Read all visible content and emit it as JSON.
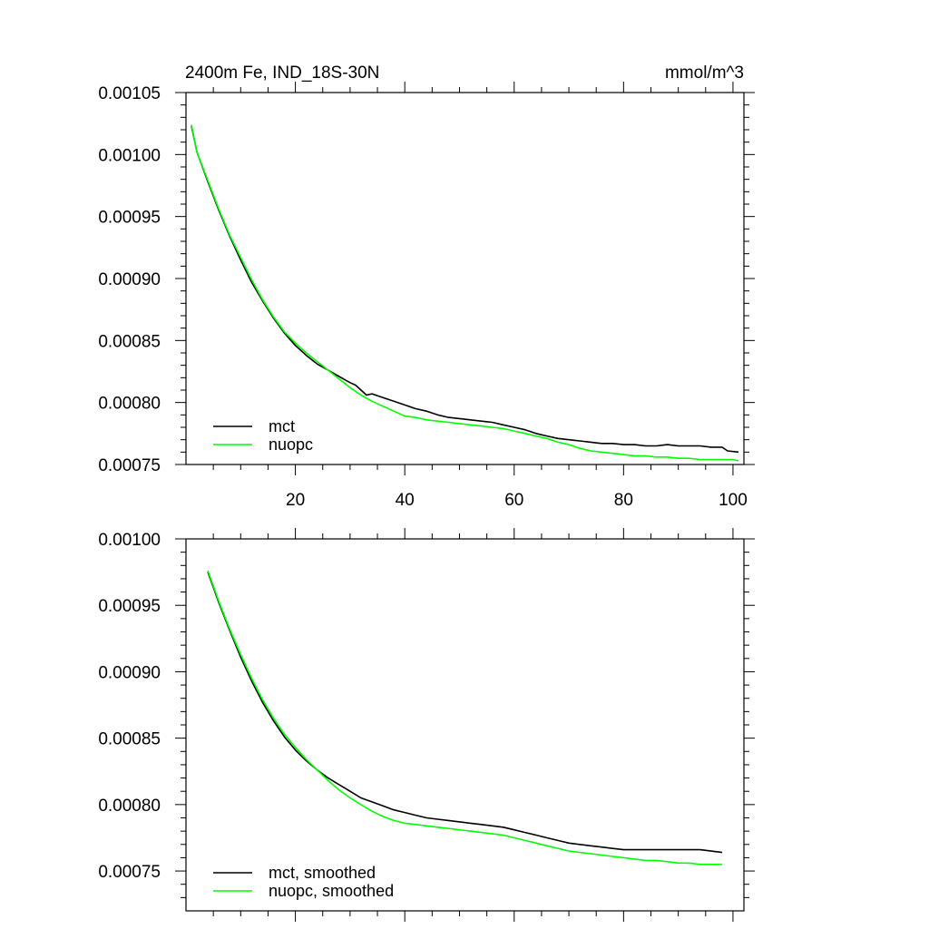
{
  "chart_data": [
    {
      "type": "line",
      "title_left": "2400m Fe, IND_18S-30N",
      "title_right": "mmol/m^3",
      "xlim": [
        0,
        102
      ],
      "ylim": [
        0.00075,
        0.00105
      ],
      "x_ticks": [
        20,
        40,
        60,
        80,
        100
      ],
      "x_tick_labels": [
        "20",
        "40",
        "60",
        "80",
        "100"
      ],
      "y_ticks": [
        0.00075,
        0.0008,
        0.00085,
        0.0009,
        0.00095,
        0.001,
        0.00105
      ],
      "y_tick_labels": [
        "0.00075",
        "0.00080",
        "0.00085",
        "0.00090",
        "0.00095",
        "0.00100",
        "0.00105"
      ],
      "grid": false,
      "legend_position": "bottom-left",
      "series": [
        {
          "name": "mct",
          "color": "#000000",
          "x": [
            1,
            2,
            4,
            6,
            8,
            10,
            12,
            14,
            16,
            18,
            20,
            22,
            24,
            26,
            28,
            30,
            31,
            33,
            34,
            36,
            38,
            40,
            42,
            44,
            46,
            48,
            50,
            52,
            54,
            56,
            58,
            60,
            62,
            64,
            66,
            68,
            70,
            72,
            74,
            76,
            78,
            80,
            82,
            84,
            86,
            88,
            90,
            92,
            94,
            96,
            98,
            99,
            101
          ],
          "values": [
            0.001023,
            0.001002,
            0.000978,
            0.000955,
            0.000934,
            0.000915,
            0.000897,
            0.000882,
            0.000868,
            0.000856,
            0.000846,
            0.000838,
            0.000831,
            0.000826,
            0.000821,
            0.000816,
            0.000814,
            0.000806,
            0.000807,
            0.000804,
            0.000801,
            0.000798,
            0.000795,
            0.000793,
            0.00079,
            0.000788,
            0.000787,
            0.000786,
            0.000785,
            0.000784,
            0.000782,
            0.00078,
            0.000778,
            0.000775,
            0.000773,
            0.000771,
            0.00077,
            0.000769,
            0.000768,
            0.000767,
            0.000767,
            0.000766,
            0.000766,
            0.000765,
            0.000765,
            0.000766,
            0.000765,
            0.000765,
            0.000765,
            0.000764,
            0.000764,
            0.000761,
            0.00076
          ]
        },
        {
          "name": "nuopc",
          "color": "#00ff00",
          "x": [
            1,
            2,
            4,
            6,
            8,
            10,
            12,
            14,
            16,
            18,
            20,
            22,
            24,
            26,
            28,
            30,
            32,
            34,
            36,
            38,
            40,
            42,
            44,
            46,
            48,
            50,
            52,
            54,
            56,
            58,
            60,
            62,
            64,
            66,
            68,
            70,
            72,
            74,
            76,
            78,
            80,
            82,
            84,
            86,
            88,
            90,
            92,
            94,
            96,
            98,
            100,
            101
          ],
          "values": [
            0.001024,
            0.001002,
            0.000979,
            0.000956,
            0.000935,
            0.000917,
            0.000899,
            0.000883,
            0.000869,
            0.000857,
            0.000848,
            0.00084,
            0.000833,
            0.000826,
            0.000819,
            0.000812,
            0.000806,
            0.000801,
            0.000797,
            0.000793,
            0.000789,
            0.000788,
            0.000786,
            0.000785,
            0.000784,
            0.000783,
            0.000782,
            0.000781,
            0.00078,
            0.000779,
            0.000777,
            0.000775,
            0.000773,
            0.000771,
            0.000768,
            0.000766,
            0.000763,
            0.000761,
            0.00076,
            0.000759,
            0.000758,
            0.000757,
            0.000757,
            0.000756,
            0.000756,
            0.000755,
            0.000755,
            0.000754,
            0.000754,
            0.000754,
            0.000754,
            0.000753
          ]
        }
      ]
    },
    {
      "type": "line",
      "xlim": [
        0,
        102
      ],
      "ylim": [
        0.00072,
        0.001
      ],
      "x_ticks": [
        20,
        40,
        60,
        80,
        100
      ],
      "y_ticks": [
        0.00075,
        0.0008,
        0.00085,
        0.0009,
        0.00095,
        0.001
      ],
      "y_tick_labels": [
        "0.00075",
        "0.00080",
        "0.00085",
        "0.00090",
        "0.00095",
        "0.00100"
      ],
      "grid": false,
      "legend_position": "bottom-left",
      "series": [
        {
          "name": "mct, smoothed",
          "color": "#000000",
          "x": [
            4,
            6,
            8,
            10,
            12,
            14,
            16,
            18,
            20,
            22,
            24,
            26,
            28,
            30,
            32,
            34,
            36,
            38,
            40,
            42,
            44,
            46,
            48,
            50,
            52,
            54,
            56,
            58,
            60,
            62,
            64,
            66,
            68,
            70,
            72,
            74,
            76,
            78,
            80,
            82,
            84,
            86,
            88,
            90,
            92,
            94,
            96,
            98
          ],
          "values": [
            0.000975,
            0.000952,
            0.000931,
            0.000911,
            0.000893,
            0.000877,
            0.000863,
            0.000851,
            0.000841,
            0.000833,
            0.000826,
            0.00082,
            0.000815,
            0.00081,
            0.000805,
            0.000802,
            0.000799,
            0.000796,
            0.000794,
            0.000792,
            0.00079,
            0.000789,
            0.000788,
            0.000787,
            0.000786,
            0.000785,
            0.000784,
            0.000783,
            0.000781,
            0.000779,
            0.000777,
            0.000775,
            0.000773,
            0.000771,
            0.00077,
            0.000769,
            0.000768,
            0.000767,
            0.000766,
            0.000766,
            0.000766,
            0.000766,
            0.000766,
            0.000766,
            0.000766,
            0.000766,
            0.000765,
            0.000764
          ]
        },
        {
          "name": "nuopc, smoothed",
          "color": "#00ff00",
          "x": [
            4,
            6,
            8,
            10,
            12,
            14,
            16,
            18,
            20,
            22,
            24,
            26,
            28,
            30,
            32,
            34,
            36,
            38,
            40,
            42,
            44,
            46,
            48,
            50,
            52,
            54,
            56,
            58,
            60,
            62,
            64,
            66,
            68,
            70,
            72,
            74,
            76,
            78,
            80,
            82,
            84,
            86,
            88,
            90,
            92,
            94,
            96,
            98
          ],
          "values": [
            0.000976,
            0.000953,
            0.000932,
            0.000913,
            0.000895,
            0.000879,
            0.000865,
            0.000853,
            0.000843,
            0.000834,
            0.000826,
            0.000818,
            0.000811,
            0.000805,
            0.0008,
            0.000795,
            0.000791,
            0.000788,
            0.000786,
            0.000785,
            0.000784,
            0.000783,
            0.000782,
            0.000781,
            0.00078,
            0.000779,
            0.000778,
            0.000777,
            0.000775,
            0.000773,
            0.000771,
            0.000769,
            0.000767,
            0.000765,
            0.000764,
            0.000763,
            0.000762,
            0.000761,
            0.00076,
            0.000759,
            0.000758,
            0.000758,
            0.000757,
            0.000756,
            0.000756,
            0.000755,
            0.000755,
            0.000755
          ]
        }
      ]
    }
  ]
}
